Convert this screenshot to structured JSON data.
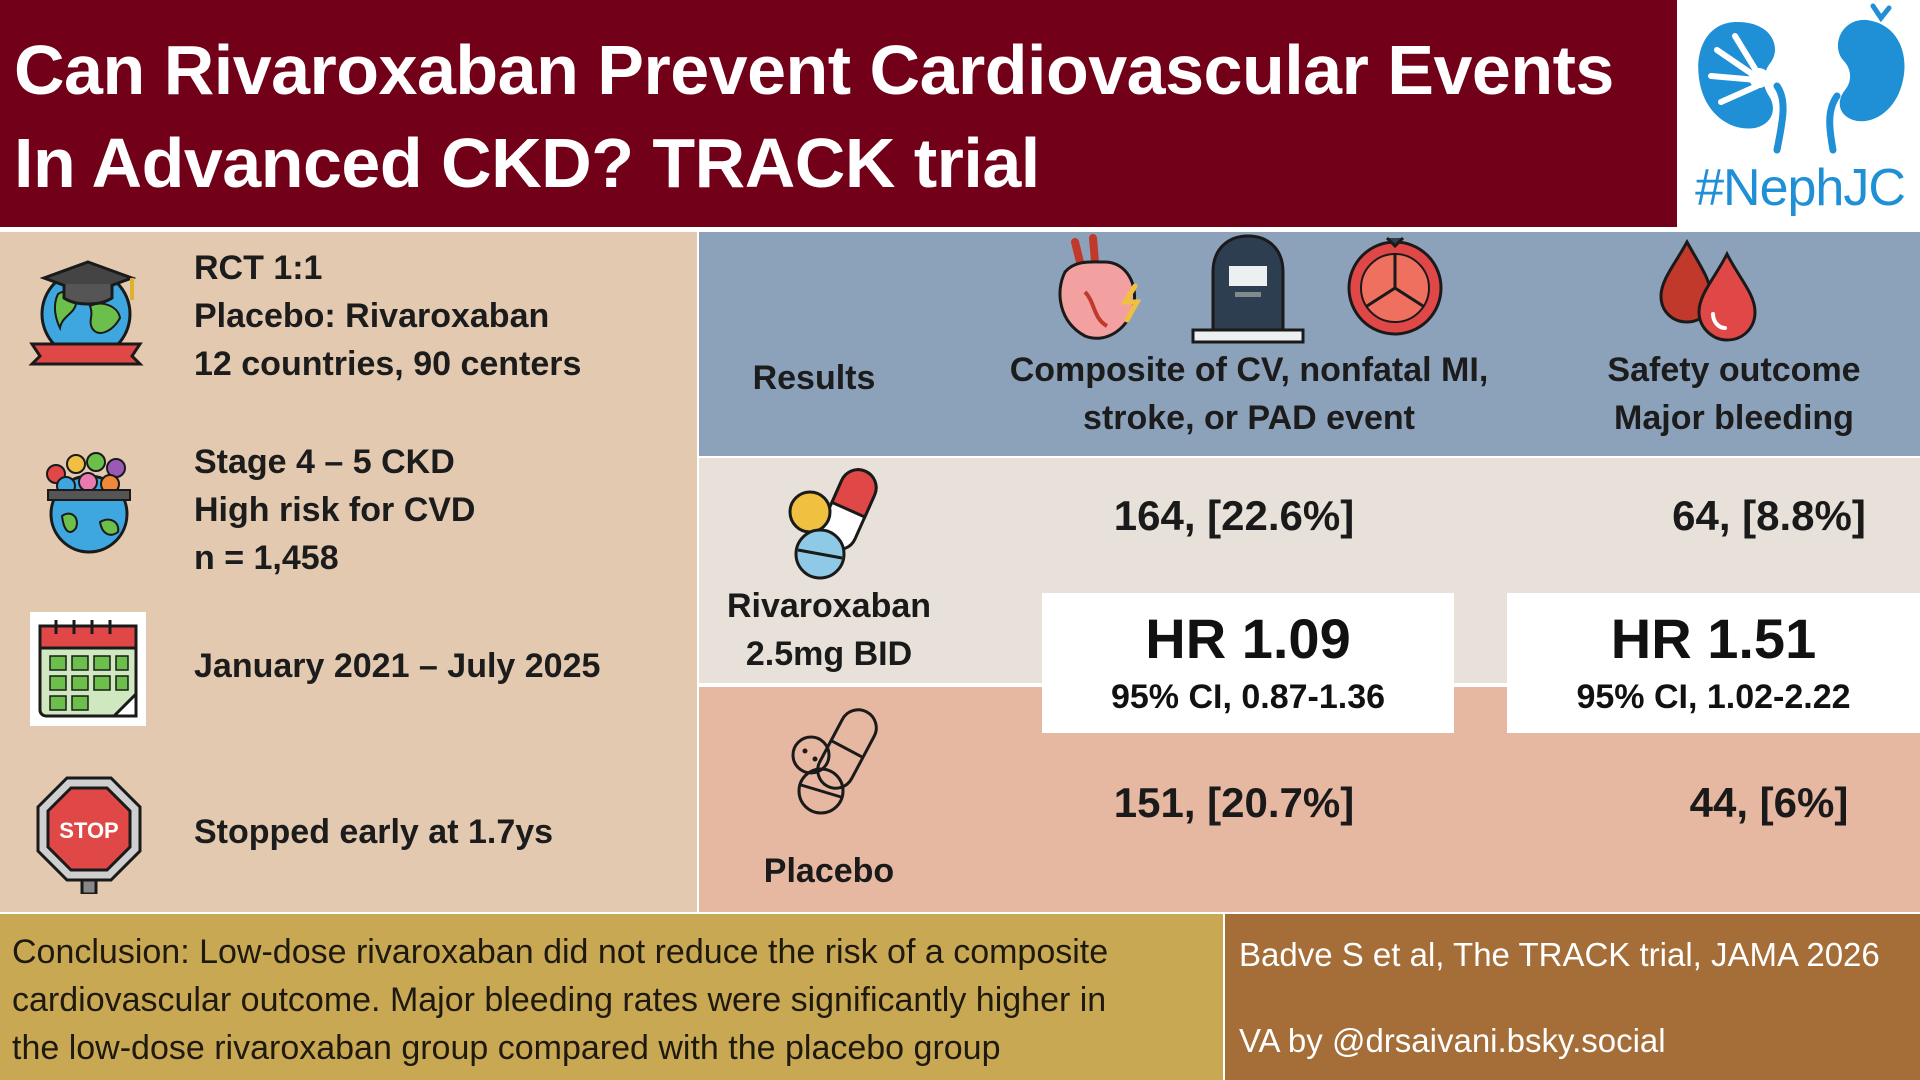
{
  "header": {
    "title_line1": "Can Rivaroxaban Prevent Cardiovascular Events",
    "title_line2": "In Advanced CKD? TRACK trial",
    "logo_text": "#NephJC"
  },
  "design": {
    "items": [
      {
        "icon": "globe-graduation-cap-icon",
        "lines": [
          "RCT 1:1",
          "Placebo: Rivaroxaban",
          "12 countries, 90 centers"
        ]
      },
      {
        "icon": "people-globe-icon",
        "lines": [
          "Stage 4 – 5 CKD",
          "High risk for CVD",
          "n = 1,458"
        ]
      },
      {
        "icon": "calendar-icon",
        "lines": [
          "January 2021 – July 2025"
        ]
      },
      {
        "icon": "stop-sign-icon",
        "lines": [
          "Stopped early at 1.7ys"
        ]
      }
    ]
  },
  "results": {
    "label": "Results",
    "columns": [
      {
        "icons": [
          "heart-icon",
          "tombstone-icon",
          "blood-cell-icon"
        ],
        "lines": [
          "Composite of CV, nonfatal MI,",
          "stroke, or PAD event"
        ]
      },
      {
        "icons": [
          "blood-drops-icon"
        ],
        "lines": [
          "Safety outcome",
          "Major bleeding"
        ]
      }
    ],
    "rows": [
      {
        "icon": "pill-capsule-icon",
        "arm_lines": [
          "Rivaroxaban",
          "2.5mg BID"
        ],
        "values": [
          "164, [22.6%]",
          "64, [8.8%]"
        ]
      },
      {
        "icon": "placebo-pill-icon",
        "arm_lines": [
          "Placebo"
        ],
        "values": [
          "151, [20.7%]",
          "44, [6%]"
        ]
      }
    ],
    "hazard_ratios": [
      {
        "hr": "HR 1.09",
        "ci": "95% CI, 0.87-1.36"
      },
      {
        "hr": "HR 1.51",
        "ci": "95% CI, 1.02-2.22"
      }
    ]
  },
  "footer": {
    "conclusion_lines": [
      "Conclusion: Low-dose rivaroxaban did not reduce the risk of a composite",
      "cardiovascular outcome. Major bleeding rates were significantly higher in",
      "the low-dose rivaroxaban group compared with the placebo group"
    ],
    "citation": "Badve S et al, The TRACK trial, JAMA 2026",
    "credit": "VA by @drsaivani.bsky.social"
  },
  "colors": {
    "header_bg": "#720019",
    "left_panel_bg": "#e2c9b0",
    "results_header_bg": "#8ca2bb",
    "rivaroxaban_row_bg": "#e7e1d9",
    "placebo_row_bg": "#e6b8a2",
    "conclusion_bg": "#c9a853",
    "citation_bg": "#a56d37",
    "logo_blue": "#1f8fd6"
  }
}
